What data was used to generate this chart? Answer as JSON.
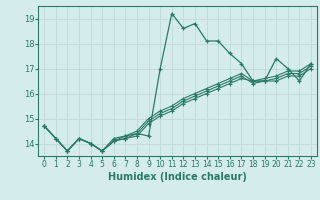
{
  "title": "",
  "xlabel": "Humidex (Indice chaleur)",
  "xlim": [
    -0.5,
    23.5
  ],
  "ylim": [
    13.5,
    19.5
  ],
  "yticks": [
    14,
    15,
    16,
    17,
    18,
    19
  ],
  "xticks": [
    0,
    1,
    2,
    3,
    4,
    5,
    6,
    7,
    8,
    9,
    10,
    11,
    12,
    13,
    14,
    15,
    16,
    17,
    18,
    19,
    20,
    21,
    22,
    23
  ],
  "bg_color": "#d4ecec",
  "grid_color": "#c0d8d8",
  "line_color": "#2a7a6a",
  "series": [
    [
      14.7,
      14.2,
      13.7,
      14.2,
      14.0,
      13.7,
      14.2,
      14.3,
      14.4,
      14.3,
      17.0,
      19.2,
      18.6,
      18.8,
      18.1,
      18.1,
      17.6,
      17.2,
      16.5,
      16.5,
      17.4,
      17.0,
      16.5,
      17.2
    ],
    [
      14.7,
      14.2,
      13.7,
      14.2,
      14.0,
      13.7,
      14.1,
      14.3,
      14.5,
      15.0,
      15.3,
      15.5,
      15.8,
      16.0,
      16.2,
      16.4,
      16.6,
      16.8,
      16.5,
      16.6,
      16.7,
      16.9,
      16.9,
      17.2
    ],
    [
      14.7,
      14.2,
      13.7,
      14.2,
      14.0,
      13.7,
      14.1,
      14.2,
      14.4,
      14.9,
      15.2,
      15.4,
      15.7,
      15.9,
      16.1,
      16.3,
      16.5,
      16.7,
      16.4,
      16.5,
      16.6,
      16.8,
      16.8,
      17.1
    ],
    [
      14.7,
      14.2,
      13.7,
      14.2,
      14.0,
      13.7,
      14.1,
      14.2,
      14.3,
      14.8,
      15.1,
      15.3,
      15.6,
      15.8,
      16.0,
      16.2,
      16.4,
      16.6,
      16.5,
      16.5,
      16.5,
      16.7,
      16.7,
      17.0
    ]
  ]
}
